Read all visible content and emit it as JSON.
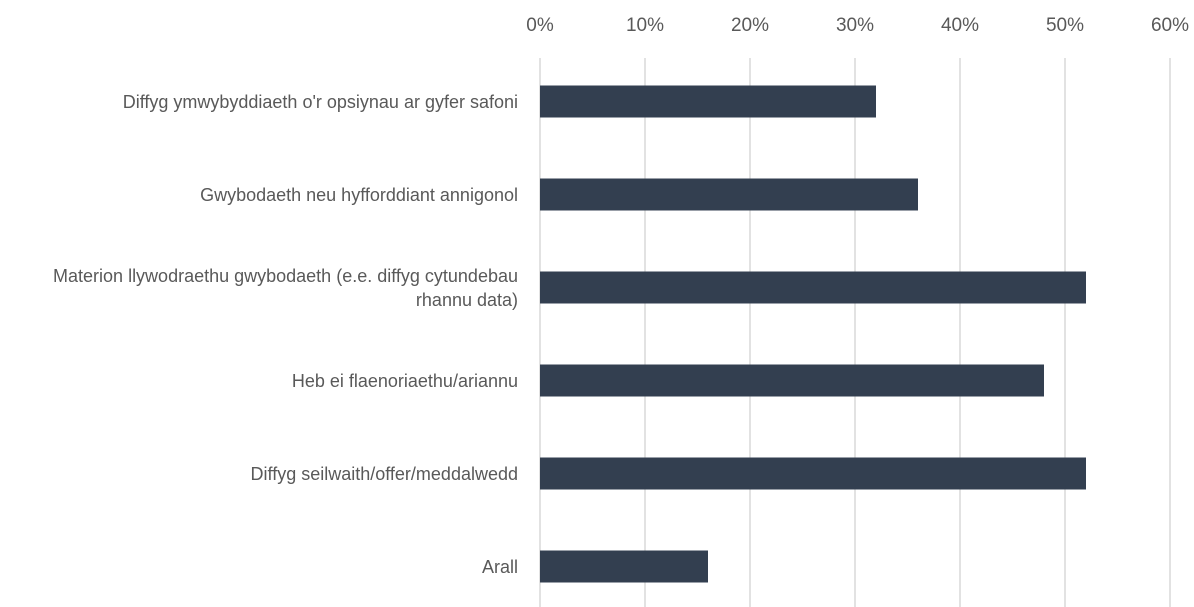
{
  "chart_data": {
    "type": "bar",
    "orientation": "horizontal",
    "categories": [
      "Diffyg ymwybyddiaeth o'r opsiynau ar gyfer safoni",
      "Gwybodaeth neu hyfforddiant annigonol",
      "Materion llywodraethu gwybodaeth (e.e. diffyg cytundebau rhannu data)",
      "Heb ei flaenoriaethu/ariannu",
      "Diffyg seilwaith/offer/meddalwedd",
      "Arall"
    ],
    "values": [
      32,
      36,
      52,
      48,
      52,
      16
    ],
    "color": "#333f50",
    "xlim": [
      0,
      60
    ],
    "xticks": [
      {
        "value": 0,
        "label": "0%"
      },
      {
        "value": 10,
        "label": "10%"
      },
      {
        "value": 20,
        "label": "20%"
      },
      {
        "value": 30,
        "label": "30%"
      },
      {
        "value": 40,
        "label": "40%"
      },
      {
        "value": 50,
        "label": "50%"
      },
      {
        "value": 60,
        "label": "60%"
      }
    ],
    "grid": true
  }
}
